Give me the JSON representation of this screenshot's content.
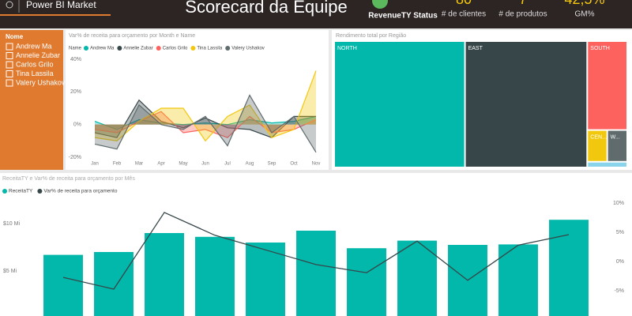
{
  "header": {
    "brand": "Power BI Market",
    "title": "Scorecard da Equipe",
    "kpis": [
      {
        "label": "RevenueTY Status",
        "color": "#5cb85c"
      },
      {
        "value": "80",
        "label": "# de clientes"
      },
      {
        "value": "7",
        "label": "# de produtos"
      },
      {
        "value": "42,5%",
        "label": "GM%"
      }
    ]
  },
  "slicer": {
    "title": "Nome",
    "items": [
      "Andrew Ma",
      "Annelie Zubar",
      "Carlos Grilo",
      "Tina Lassila",
      "Valery Ushakov"
    ]
  },
  "chart_data": [
    {
      "type": "area",
      "title": "Var% de receita para orçamento por Month e Name",
      "legend_title": "Name",
      "categories": [
        "Jan",
        "Feb",
        "Mar",
        "Apr",
        "May",
        "Jun",
        "Jul",
        "Aug",
        "Sep",
        "Oct",
        "Nov"
      ],
      "series": [
        {
          "name": "Andrew Ma",
          "color": "#01b8aa",
          "values": [
            2,
            -3,
            3,
            1,
            0,
            1,
            0,
            3,
            1,
            2,
            5
          ]
        },
        {
          "name": "Annelie Zubar",
          "color": "#374649",
          "values": [
            -5,
            -8,
            15,
            2,
            -2,
            4,
            -2,
            -3,
            -8,
            5,
            5
          ]
        },
        {
          "name": "Carlos Grilo",
          "color": "#fd625e",
          "values": [
            -3,
            -5,
            2,
            8,
            -5,
            -3,
            -8,
            5,
            -5,
            -3,
            3
          ]
        },
        {
          "name": "Tina Lassila",
          "color": "#f2c80f",
          "values": [
            -8,
            -10,
            2,
            10,
            10,
            -10,
            5,
            12,
            -8,
            -3,
            33
          ]
        },
        {
          "name": "Valery Ushakov",
          "color": "#5f6b6d",
          "values": [
            -12,
            -15,
            12,
            0,
            -3,
            5,
            -13,
            18,
            -5,
            5,
            -17
          ]
        }
      ],
      "ylim": [
        -22.9,
        43.4
      ],
      "yticks": [
        {
          "value": 40,
          "label": "40%"
        },
        {
          "value": 20,
          "label": "20%"
        },
        {
          "value": 0,
          "label": "0%"
        },
        {
          "value": -20,
          "label": "-20%"
        }
      ],
      "grid": false
    },
    {
      "type": "treemap",
      "title": "Rendimento total por Região",
      "categories": [
        "NORTH",
        "EAST",
        "SOUTH",
        "CEN...",
        "W...",
        null
      ],
      "values": [
        26000,
        24300,
        5600,
        1000,
        1000,
        360
      ],
      "colors": [
        "#01b8aa",
        "#374649",
        "#fd625e",
        "#f2c80f",
        "#5f6b6d",
        "#8ad4eb"
      ]
    },
    {
      "type": "combo",
      "title": "ReceitaTY e Var% de receita para orçamento por Mês",
      "series": [
        {
          "name": "ReceitaTY",
          "color": "#01b8aa",
          "type": "bar",
          "values": [
            6700000,
            7000000,
            9000000,
            8600000,
            8000000,
            9250000,
            7400000,
            8200000,
            7750000,
            7800000,
            10400000
          ]
        },
        {
          "name": "Var% de receita para orçamento",
          "color": "#374649",
          "type": "line",
          "axis": "y2",
          "values": [
            -2.7,
            -4.7,
            8.4,
            4.5,
            2.0,
            -0.5,
            -1.9,
            3.5,
            -3.2,
            2.8,
            4.6
          ]
        }
      ],
      "ylim": [
        0,
        12750000
      ],
      "yticks": [
        {
          "value": 10000000,
          "label": "$10 Mi"
        },
        {
          "value": 5000000,
          "label": "$5 Mi"
        }
      ],
      "y2lim": [
        -9.7,
        10.95
      ],
      "y2ticks": [
        {
          "value": 10,
          "label": "10%"
        },
        {
          "value": 5,
          "label": "5%"
        },
        {
          "value": 0,
          "label": "0%"
        },
        {
          "value": -5,
          "label": "-5%"
        }
      ]
    }
  ]
}
